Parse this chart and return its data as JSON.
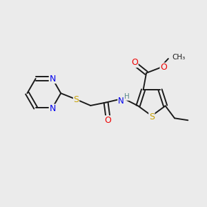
{
  "background_color": "#ebebeb",
  "bond_color": "#1a1a1a",
  "atom_colors": {
    "N": "#0000ee",
    "S": "#c8a000",
    "O": "#ee0000",
    "H": "#5a8a8a",
    "C": "#1a1a1a"
  },
  "figsize": [
    3.0,
    3.0
  ],
  "dpi": 100,
  "xlim": [
    0,
    10
  ],
  "ylim": [
    0,
    10
  ]
}
